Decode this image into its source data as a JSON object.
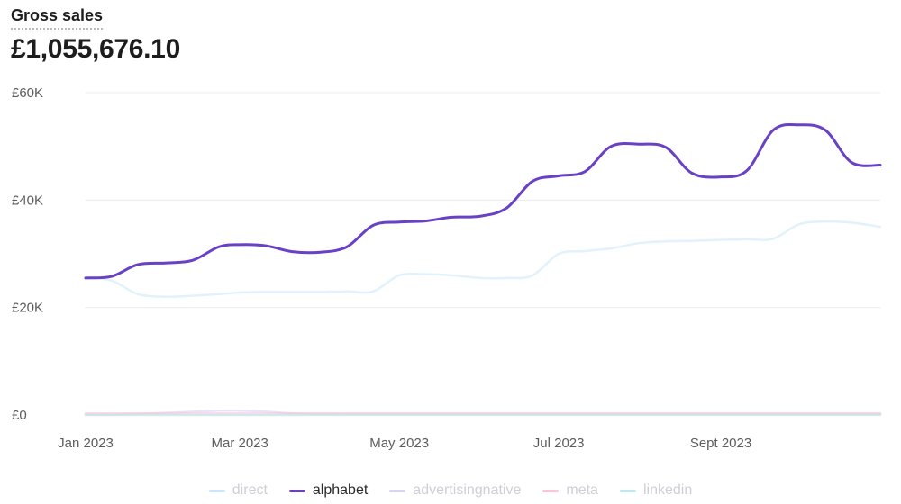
{
  "header": {
    "title": "Gross sales",
    "total": "£1,055,676.10"
  },
  "chart_data": {
    "type": "line",
    "x": [
      "2023-01-01",
      "2023-01-11",
      "2023-01-21",
      "2023-02-01",
      "2023-02-11",
      "2023-02-21",
      "2023-03-01",
      "2023-03-11",
      "2023-03-21",
      "2023-04-01",
      "2023-04-11",
      "2023-04-21",
      "2023-05-01",
      "2023-05-11",
      "2023-05-21",
      "2023-06-01",
      "2023-06-11",
      "2023-06-21",
      "2023-07-01",
      "2023-07-11",
      "2023-07-21",
      "2023-08-01",
      "2023-08-11",
      "2023-08-21",
      "2023-09-01",
      "2023-09-11",
      "2023-09-21",
      "2023-10-01",
      "2023-10-11",
      "2023-10-21",
      "2023-11-01"
    ],
    "series": [
      {
        "name": "direct",
        "color": "#c9e7f8",
        "opacity": 0.55,
        "values": [
          25500,
          25000,
          22500,
          22000,
          22200,
          22500,
          22800,
          22900,
          22900,
          22900,
          23000,
          23000,
          26000,
          26200,
          26000,
          25500,
          25500,
          26000,
          30000,
          30500,
          31000,
          32000,
          32300,
          32400,
          32600,
          32700,
          32800,
          35500,
          36000,
          35800,
          35000
        ]
      },
      {
        "name": "alphabet",
        "color": "#6941c6",
        "opacity": 1,
        "values": [
          25500,
          25800,
          28000,
          28300,
          28800,
          31300,
          31700,
          31500,
          30400,
          30300,
          31300,
          35300,
          35900,
          36100,
          36800,
          37000,
          38500,
          43500,
          44500,
          45300,
          50000,
          50400,
          49800,
          45000,
          44300,
          45500,
          53000,
          54000,
          53000,
          47000,
          46500
        ]
      },
      {
        "name": "advertisingnative",
        "color": "#d9d2f2",
        "opacity": 0.6,
        "values": [
          100,
          100,
          200,
          400,
          600,
          800,
          800,
          600,
          300,
          200,
          200,
          200,
          200,
          200,
          200,
          200,
          200,
          200,
          200,
          200,
          200,
          200,
          200,
          200,
          200,
          200,
          200,
          200,
          200,
          200,
          200
        ]
      },
      {
        "name": "meta",
        "color": "#f7c6d9",
        "opacity": 0.6,
        "values": [
          300,
          300,
          300,
          300,
          300,
          300,
          300,
          300,
          300,
          300,
          300,
          300,
          300,
          300,
          300,
          300,
          300,
          300,
          300,
          300,
          300,
          300,
          300,
          300,
          300,
          300,
          300,
          300,
          300,
          300,
          300
        ]
      },
      {
        "name": "linkedin",
        "color": "#bfe6ea",
        "opacity": 0.6,
        "values": [
          0,
          0,
          0,
          0,
          0,
          0,
          0,
          0,
          0,
          0,
          0,
          0,
          0,
          0,
          0,
          0,
          0,
          0,
          0,
          0,
          0,
          0,
          0,
          0,
          0,
          0,
          0,
          0,
          0,
          0,
          0
        ]
      }
    ],
    "y_ticks": [
      "£0",
      "£20K",
      "£40K",
      "£60K"
    ],
    "y_tick_values": [
      0,
      20000,
      40000,
      60000
    ],
    "ylim": [
      0,
      60000
    ],
    "x_ticks": [
      "Jan 2023",
      "Mar 2023",
      "May 2023",
      "Jul 2023",
      "Sept 2023"
    ],
    "x_tick_dates": [
      "2023-01-01",
      "2023-03-01",
      "2023-05-01",
      "2023-07-01",
      "2023-09-01"
    ],
    "xlim": [
      "2023-01-01",
      "2023-11-01"
    ],
    "grid": true,
    "legend_position": "bottom-center"
  }
}
